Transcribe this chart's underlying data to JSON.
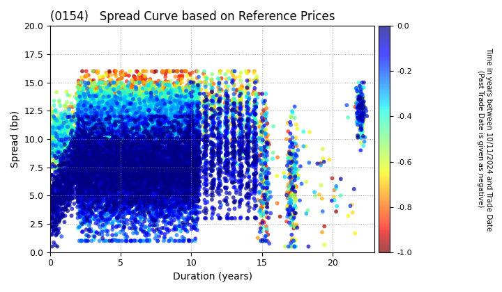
{
  "title": "(0154)   Spread Curve based on Reference Prices",
  "xlabel": "Duration (years)",
  "ylabel": "Spread (bp)",
  "colorbar_label": "Time in years between 10/11/2024 and Trade Date\n(Past Trade Date is given as negative)",
  "colorbar_ticks": [
    0.0,
    -0.2,
    -0.4,
    -0.6,
    -0.8,
    -1.0
  ],
  "xlim": [
    0,
    23
  ],
  "ylim": [
    0.0,
    20.0
  ],
  "yticks": [
    0.0,
    2.5,
    5.0,
    7.5,
    10.0,
    12.5,
    15.0,
    17.5,
    20.0
  ],
  "xticks": [
    0,
    5,
    10,
    15,
    20
  ],
  "color_min": -1.0,
  "color_max": 0.0,
  "background_color": "#ffffff",
  "grid_color": "#888888",
  "cmap": "jet_r",
  "marker_size": 18,
  "alpha": 0.7
}
